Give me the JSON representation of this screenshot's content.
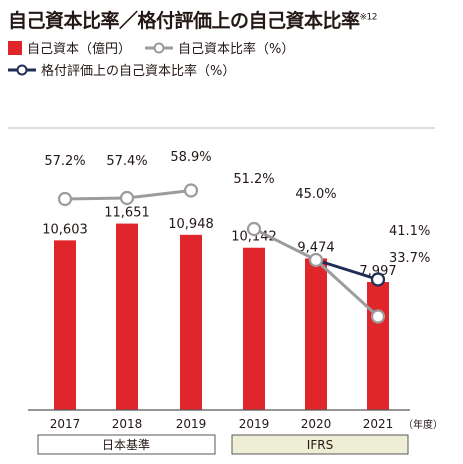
{
  "title": "自己資本比率／格付評価上の自己資本比率",
  "title_note": "※12",
  "legend": {
    "bar_label": "自己資本（億円）",
    "line1_label": "自己資本比率（%）",
    "line2_label": "格付評価上の自己資本比率（%）"
  },
  "colors": {
    "bar": "#e0262b",
    "line_gray": "#9c9c9c",
    "line_navy": "#1f2d57",
    "ifrs_bg": "#eeeed5"
  },
  "chart_data": {
    "type": "bar",
    "categories": [
      "2017",
      "2018",
      "2019",
      "2019",
      "2020",
      "2021"
    ],
    "x_unit_label": "（年度）",
    "series": [
      {
        "values": [
          10603,
          11651,
          10948,
          10142,
          9474,
          7997
        ],
        "value_labels": [
          "10,603",
          "11,651",
          "10,948",
          "10,142",
          "9,474",
          "7,997"
        ]
      },
      {
        "values": [
          57.2,
          57.4,
          58.9,
          51.2,
          45.0,
          33.7
        ],
        "value_labels": [
          "57.2%",
          "57.4%",
          "58.9%",
          "51.2%",
          "45.0%",
          "33.7%"
        ]
      },
      {
        "values": [
          null,
          null,
          null,
          null,
          45.0,
          41.1
        ],
        "value_labels": [
          "",
          "",
          "",
          "",
          "",
          "41.1%"
        ]
      }
    ],
    "groups": [
      {
        "label": "日本基準",
        "from": 0,
        "to": 2
      },
      {
        "label": "IFRS",
        "from": 3,
        "to": 5
      }
    ],
    "ylim_bars": [
      0,
      20000
    ],
    "ylim_ratio": [
      0,
      100
    ]
  }
}
